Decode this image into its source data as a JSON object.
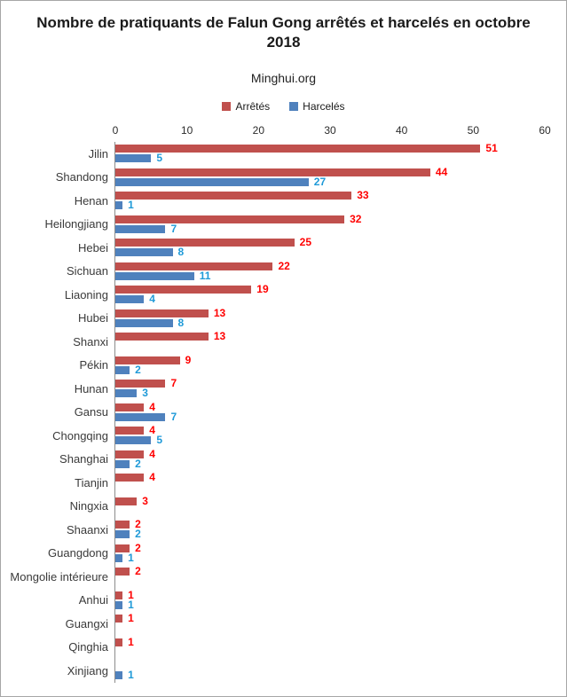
{
  "chart_data": {
    "type": "bar",
    "orientation": "horizontal",
    "title": "Nombre de pratiquants de Falun Gong arrêtés et harcelés en octobre 2018",
    "subtitle": "Minghui.org",
    "xlim": [
      0,
      60
    ],
    "xticks": [
      0,
      10,
      20,
      30,
      40,
      50,
      60
    ],
    "grid": false,
    "legend_position": "top",
    "categories": [
      "Jilin",
      "Shandong",
      "Henan",
      "Heilongjiang",
      "Hebei",
      "Sichuan",
      "Liaoning",
      "Hubei",
      "Shanxi",
      "Pékin",
      "Hunan",
      "Gansu",
      "Chongqing",
      "Shanghai",
      "Tianjin",
      "Ningxia",
      "Shaanxi",
      "Guangdong",
      "Mongolie intérieure",
      "Anhui",
      "Guangxi",
      "Qinghia",
      "Xinjiang"
    ],
    "series": [
      {
        "name": "Arrêtés",
        "color": "#C0504D",
        "label_color": "#FF0000",
        "values": [
          51,
          44,
          33,
          32,
          25,
          22,
          19,
          13,
          13,
          9,
          7,
          4,
          4,
          4,
          4,
          3,
          2,
          2,
          2,
          1,
          1,
          1,
          0
        ]
      },
      {
        "name": "Harcelés",
        "color": "#4F81BD",
        "label_color": "#1F9AD8",
        "values": [
          5,
          27,
          1,
          7,
          8,
          11,
          4,
          8,
          0,
          2,
          3,
          7,
          5,
          2,
          0,
          0,
          2,
          1,
          0,
          1,
          0,
          0,
          1
        ]
      }
    ],
    "style": {
      "axis_line_color": "#8C8C8C",
      "text_color": "#3A3A3A"
    }
  }
}
